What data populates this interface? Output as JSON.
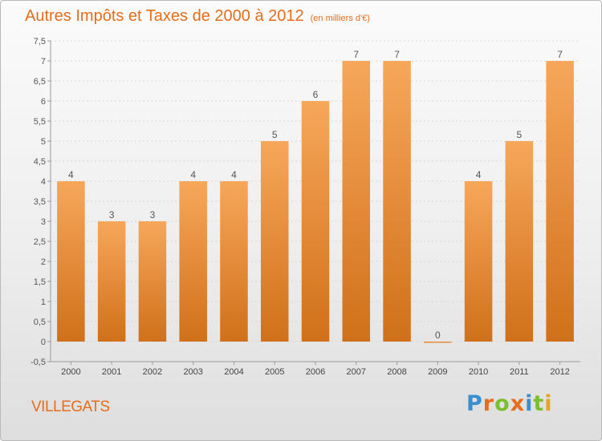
{
  "title": "Autres Impôts et Taxes de 2000 à 2012",
  "unit_label": "(en milliers d'€)",
  "town": "VILLEGATS",
  "logo": {
    "letters": [
      "P",
      "r",
      "o",
      "x",
      "i",
      "t",
      "i"
    ]
  },
  "colors": {
    "accent": "#e56d1b",
    "bar_top": "#f7a75a",
    "bar_bottom": "#d0701a",
    "axis": "#9a9a9a",
    "grid": "#d6d6d6"
  },
  "chart_data": {
    "type": "bar",
    "title": "Autres Impôts et Taxes de 2000 à 2012",
    "categories": [
      "2000",
      "2001",
      "2002",
      "2003",
      "2004",
      "2005",
      "2006",
      "2007",
      "2008",
      "2009",
      "2010",
      "2011",
      "2012"
    ],
    "values": [
      4,
      3,
      3,
      4,
      4,
      5,
      6,
      7,
      7,
      0,
      4,
      5,
      7
    ],
    "data_labels": [
      "4",
      "3",
      "3",
      "4",
      "4",
      "5",
      "6",
      "7",
      "7",
      "0",
      "4",
      "5",
      "7"
    ],
    "yticks": [
      "-0,5",
      "0",
      "0,5",
      "1",
      "1,5",
      "2",
      "2,5",
      "3",
      "3,5",
      "4",
      "4,5",
      "5",
      "5,5",
      "6",
      "6,5",
      "7",
      "7,5"
    ],
    "ylim": [
      -0.5,
      7.5
    ],
    "grid": true,
    "legend": false
  }
}
